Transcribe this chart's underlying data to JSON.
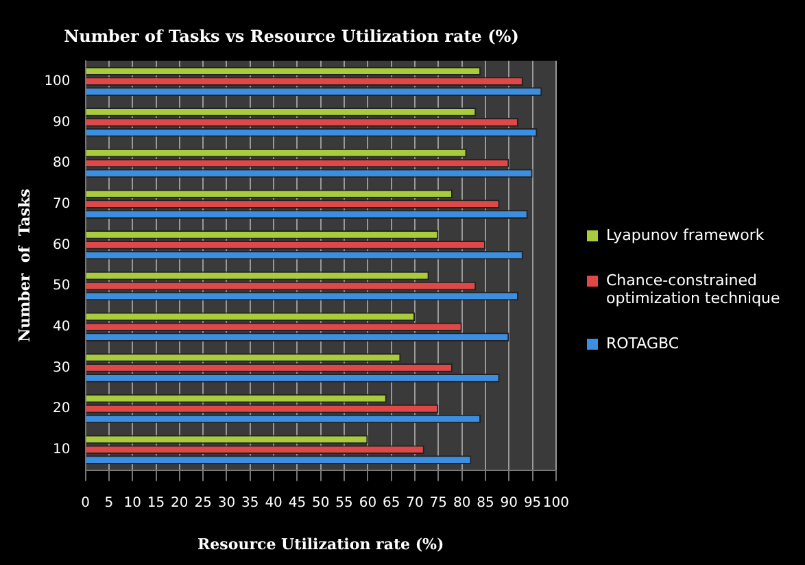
{
  "chart_data": {
    "type": "bar",
    "orientation": "horizontal",
    "title": "Number of Tasks vs Resource Utilization rate (%)",
    "xlabel": "Resource Utilization rate (%)",
    "ylabel": "Number  of  Tasks",
    "categories": [
      "100",
      "90",
      "80",
      "70",
      "60",
      "50",
      "40",
      "30",
      "20",
      "10"
    ],
    "series": [
      {
        "name": "Lyapunov framework",
        "color": "#a8cc3c",
        "values": [
          84,
          83,
          81,
          78,
          75,
          73,
          70,
          67,
          64,
          60
        ]
      },
      {
        "name": "Chance-constrained optimization technique",
        "color": "#e04848",
        "values": [
          93,
          92,
          90,
          88,
          85,
          83,
          80,
          78,
          75,
          72
        ]
      },
      {
        "name": "ROTAGBC",
        "color": "#3c8ee0",
        "values": [
          97,
          96,
          95,
          94,
          93,
          92,
          90,
          88,
          84,
          82
        ]
      }
    ],
    "xlim": [
      0,
      100
    ],
    "xticks": [
      0,
      5,
      10,
      15,
      20,
      25,
      30,
      35,
      40,
      45,
      50,
      55,
      60,
      65,
      70,
      75,
      80,
      85,
      90,
      95,
      100
    ],
    "grid": "x",
    "legend": "right"
  }
}
